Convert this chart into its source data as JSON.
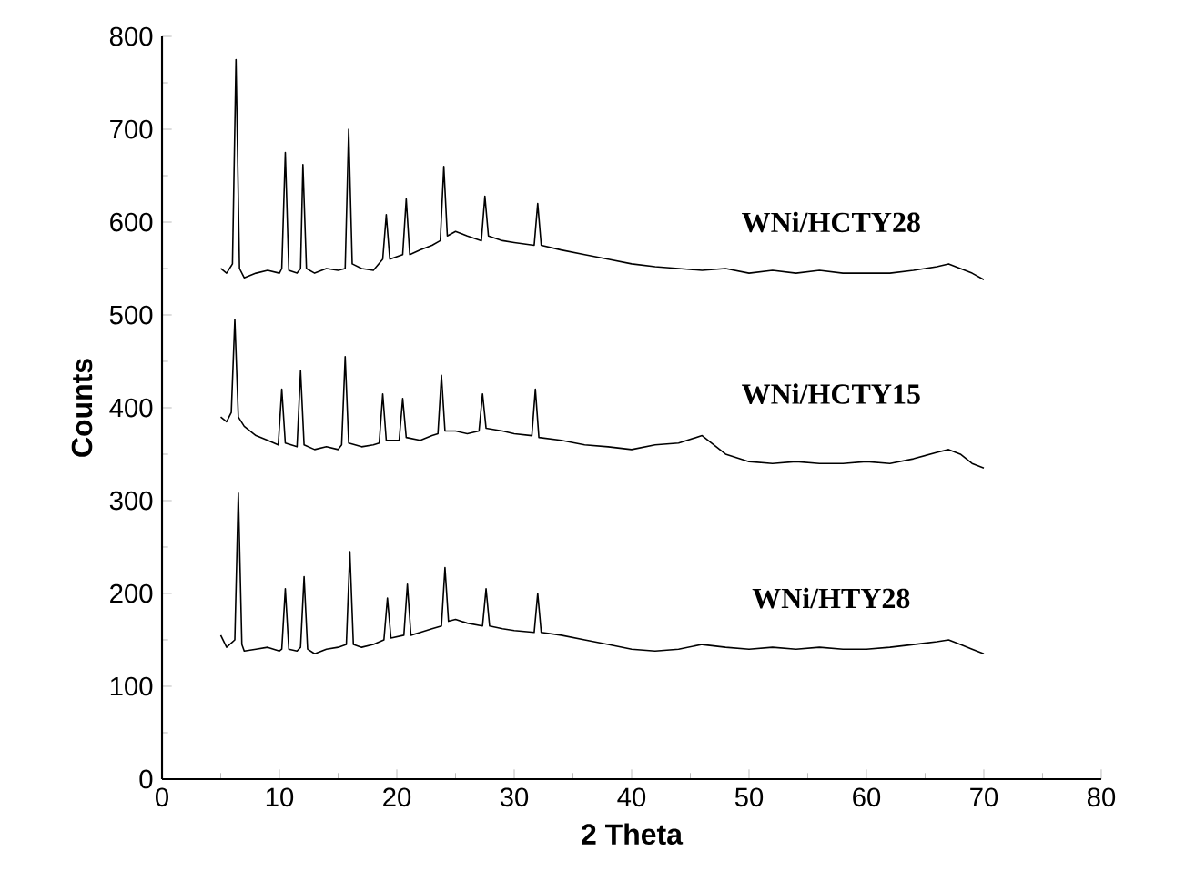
{
  "chart_data": {
    "type": "line",
    "xlabel": "2 Theta",
    "ylabel": "Counts",
    "xlim": [
      0,
      80
    ],
    "ylim": [
      0,
      800
    ],
    "xticks": [
      0,
      10,
      20,
      30,
      40,
      50,
      60,
      70,
      80
    ],
    "yticks": [
      0,
      100,
      200,
      300,
      400,
      500,
      600,
      700,
      800
    ],
    "grid": false,
    "legend": false,
    "marker": "none",
    "line_style": "solid",
    "series": [
      {
        "name": "WNi/HCTY28",
        "color": "#000000",
        "x": [
          5,
          5.5,
          6.0,
          6.3,
          6.6,
          7,
          8,
          9,
          10,
          10.2,
          10.5,
          10.8,
          11.5,
          11.8,
          12.0,
          12.3,
          13,
          14,
          15,
          15.6,
          15.9,
          16.2,
          17,
          18,
          18.8,
          19.1,
          19.4,
          20.5,
          20.8,
          21.1,
          22,
          23,
          23.7,
          24.0,
          24.3,
          25,
          26,
          27.2,
          27.5,
          27.8,
          29,
          30,
          31.7,
          32.0,
          32.3,
          34,
          36,
          38,
          40,
          42,
          44,
          46,
          48,
          50,
          52,
          54,
          56,
          58,
          60,
          62,
          64,
          66,
          67,
          68,
          69,
          70
        ],
        "values": [
          550,
          545,
          555,
          775,
          550,
          540,
          545,
          548,
          545,
          550,
          675,
          548,
          545,
          550,
          662,
          550,
          545,
          550,
          548,
          550,
          700,
          555,
          550,
          548,
          560,
          608,
          560,
          565,
          625,
          565,
          570,
          575,
          580,
          660,
          585,
          590,
          585,
          580,
          628,
          585,
          580,
          578,
          575,
          620,
          575,
          570,
          565,
          560,
          555,
          552,
          550,
          548,
          550,
          545,
          548,
          545,
          548,
          545,
          545,
          545,
          548,
          552,
          555,
          550,
          545,
          538
        ]
      },
      {
        "name": "WNi/HCTY15",
        "color": "#000000",
        "x": [
          5,
          5.5,
          5.9,
          6.2,
          6.5,
          7,
          8,
          9,
          9.9,
          10.2,
          10.5,
          11.5,
          11.8,
          12.1,
          13,
          14,
          15,
          15.3,
          15.6,
          15.9,
          17,
          18,
          18.5,
          18.8,
          19.1,
          20.2,
          20.5,
          20.8,
          22,
          23,
          23.5,
          23.8,
          24.1,
          25,
          26,
          27.0,
          27.3,
          27.6,
          29,
          30,
          31.5,
          31.8,
          32.1,
          34,
          36,
          38,
          40,
          42,
          44,
          46,
          48,
          50,
          52,
          54,
          56,
          58,
          60,
          62,
          64,
          66,
          67,
          68,
          69,
          70
        ],
        "values": [
          390,
          385,
          395,
          495,
          390,
          380,
          370,
          365,
          360,
          420,
          362,
          358,
          440,
          360,
          355,
          358,
          355,
          360,
          455,
          362,
          358,
          360,
          362,
          415,
          365,
          365,
          410,
          368,
          365,
          370,
          372,
          435,
          375,
          375,
          372,
          375,
          415,
          378,
          375,
          372,
          370,
          420,
          368,
          365,
          360,
          358,
          355,
          360,
          362,
          370,
          350,
          342,
          340,
          342,
          340,
          340,
          342,
          340,
          345,
          352,
          355,
          350,
          340,
          335
        ]
      },
      {
        "name": "WNi/HTY28",
        "color": "#000000",
        "x": [
          5,
          5.5,
          6.2,
          6.5,
          6.8,
          7,
          8,
          9,
          10,
          10.2,
          10.5,
          10.8,
          11.5,
          11.8,
          12.1,
          12.4,
          13,
          14,
          15,
          15.7,
          16.0,
          16.3,
          17,
          18,
          18.9,
          19.2,
          19.5,
          20.6,
          20.9,
          21.2,
          22,
          23,
          23.8,
          24.1,
          24.4,
          25,
          26,
          27.3,
          27.6,
          27.9,
          29,
          30,
          31.7,
          32.0,
          32.3,
          34,
          36,
          38,
          40,
          42,
          44,
          46,
          48,
          50,
          52,
          54,
          56,
          58,
          60,
          62,
          64,
          66,
          67,
          68,
          69,
          70
        ],
        "values": [
          155,
          142,
          150,
          308,
          145,
          138,
          140,
          142,
          138,
          140,
          205,
          140,
          138,
          142,
          218,
          140,
          135,
          140,
          142,
          145,
          245,
          145,
          142,
          145,
          150,
          195,
          152,
          155,
          210,
          155,
          158,
          162,
          165,
          228,
          170,
          172,
          168,
          165,
          205,
          165,
          162,
          160,
          158,
          200,
          158,
          155,
          150,
          145,
          140,
          138,
          140,
          145,
          142,
          140,
          142,
          140,
          142,
          140,
          140,
          142,
          145,
          148,
          150,
          145,
          140,
          135
        ]
      }
    ]
  }
}
